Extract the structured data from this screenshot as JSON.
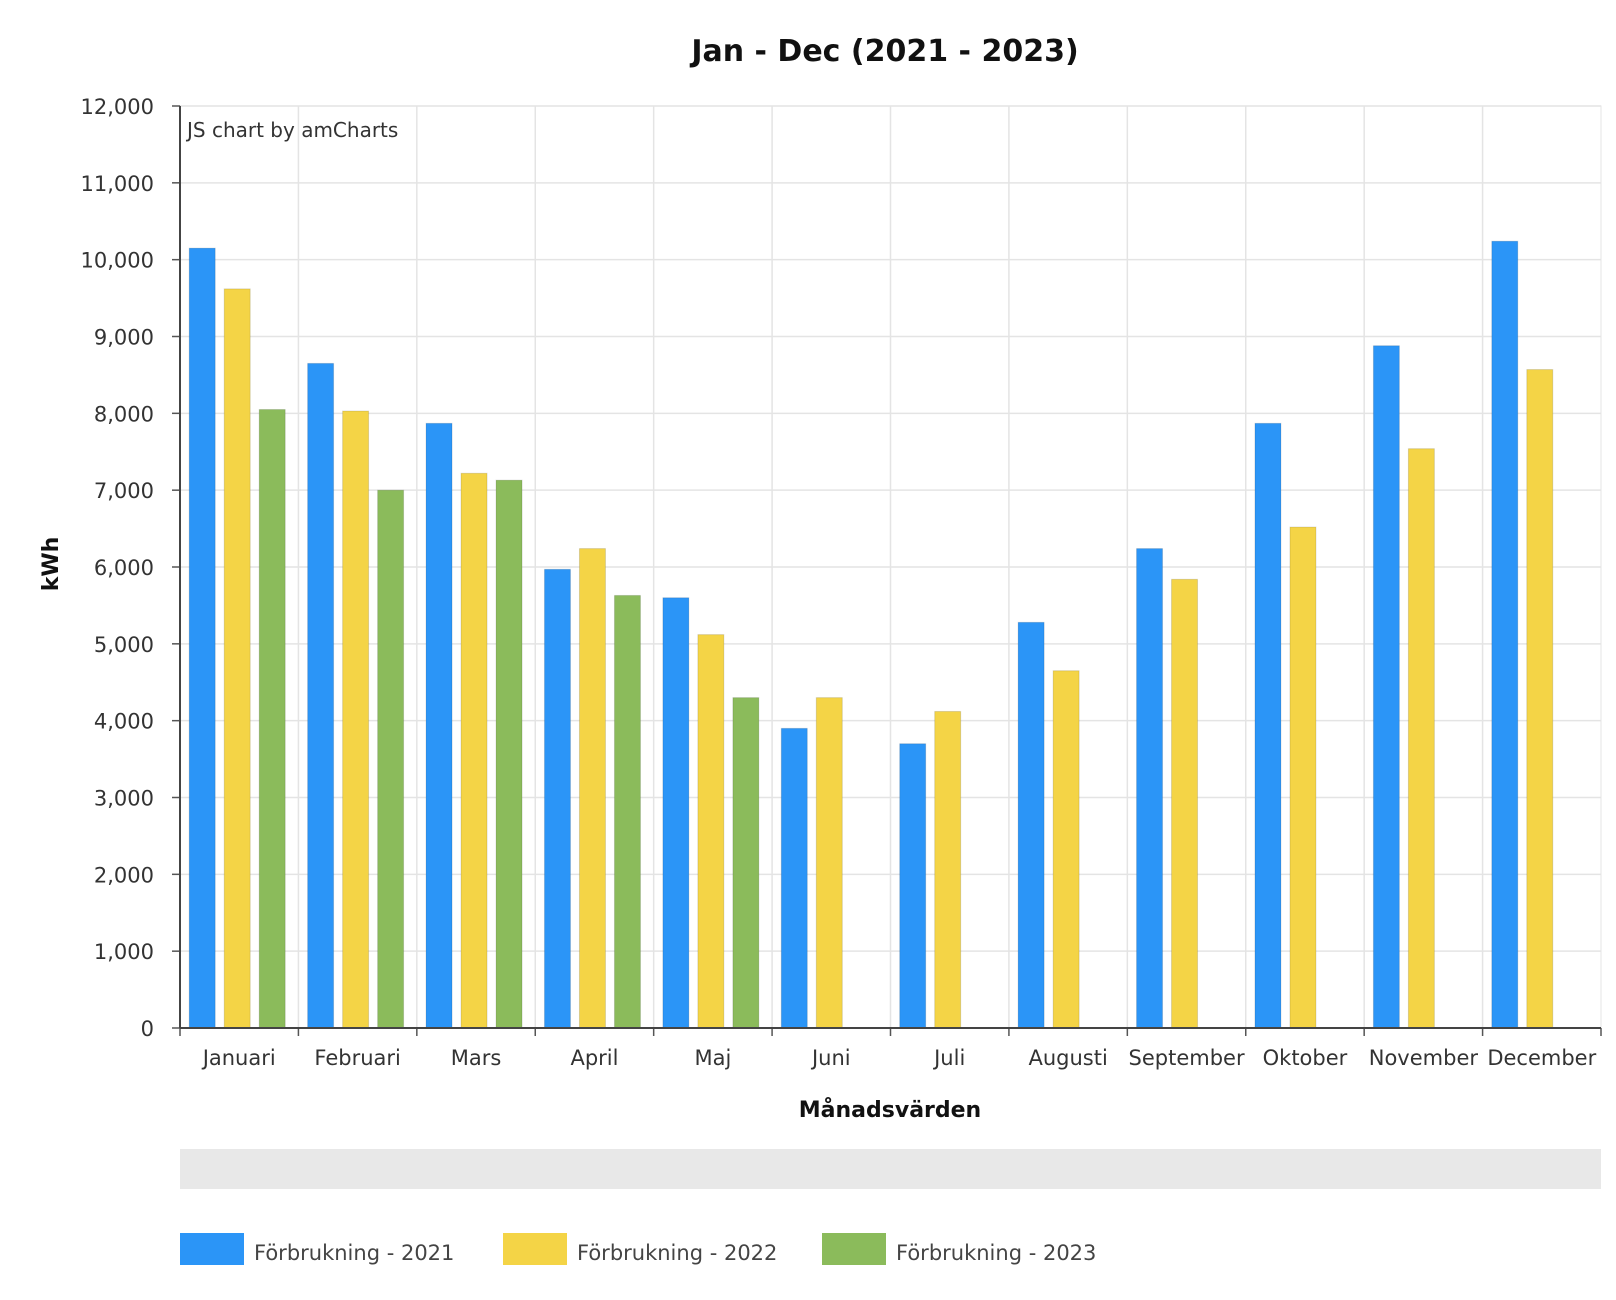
{
  "chart_data": {
    "type": "bar",
    "title": "Jan - Dec (2021 - 2023)",
    "xlabel": "Månadsvärden",
    "ylabel": "kWh",
    "credit": "JS chart by amCharts",
    "ylim": [
      0,
      12000
    ],
    "yticks": [
      "0",
      "1,000",
      "2,000",
      "3,000",
      "4,000",
      "5,000",
      "6,000",
      "7,000",
      "8,000",
      "9,000",
      "10,000",
      "11,000",
      "12,000"
    ],
    "categories": [
      "Januari",
      "Februari",
      "Mars",
      "April",
      "Maj",
      "Juni",
      "Juli",
      "Augusti",
      "September",
      "Oktober",
      "November",
      "December"
    ],
    "series": [
      {
        "name": "Förbrukning - 2021",
        "color": "#2b95f7",
        "values": [
          10150,
          8650,
          7870,
          5970,
          5600,
          3900,
          3700,
          5280,
          6240,
          7870,
          8880,
          10240
        ]
      },
      {
        "name": "Förbrukning - 2022",
        "color": "#f4d446",
        "values": [
          9620,
          8030,
          7220,
          6240,
          5120,
          4300,
          4120,
          4650,
          5840,
          6520,
          7540,
          8570
        ]
      },
      {
        "name": "Förbrukning - 2023",
        "color": "#8bbb5b",
        "values": [
          8050,
          7000,
          7130,
          5630,
          4300,
          null,
          null,
          null,
          null,
          null,
          null,
          null
        ]
      }
    ],
    "grid": true,
    "legend_position": "bottom-left",
    "scrollbar": true
  }
}
